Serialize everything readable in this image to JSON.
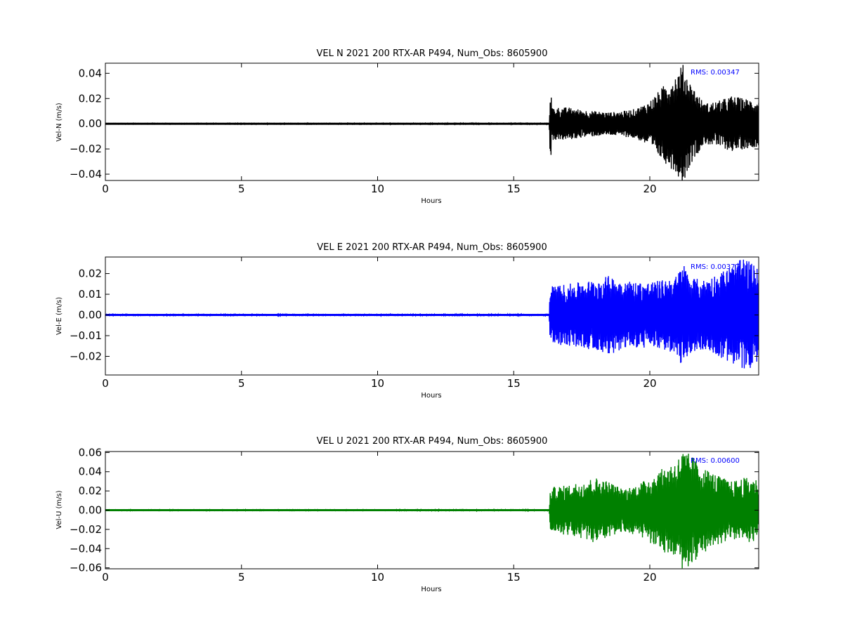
{
  "chart_data": [
    {
      "type": "line",
      "title": "VEL N 2021 200 RTX-AR  P494, Num_Obs: 8605900",
      "xlabel": "Hours",
      "ylabel": "Vel-N (m/s)",
      "xlim": [
        0,
        24
      ],
      "ylim": [
        -0.045,
        0.048
      ],
      "xticks": [
        0,
        5,
        10,
        15,
        20
      ],
      "yticks": [
        -0.04,
        -0.02,
        0.0,
        0.02,
        0.04
      ],
      "ytick_labels": [
        "−0.04",
        "−0.02",
        "0.00",
        "0.02",
        "0.04"
      ],
      "color": "#000000",
      "annotation": "RMS:  0.00347",
      "annotation_color": "#0000ff",
      "grid": false,
      "series": [
        {
          "x": [
            0,
            16.3,
            16.35,
            16.4,
            17,
            17.5,
            18,
            18.5,
            19,
            19.5,
            20,
            20.5,
            21,
            21.2,
            21.5,
            22,
            22.5,
            23,
            23.5,
            24
          ],
          "envelope": [
            0.0006,
            0.0008,
            0.037,
            0.013,
            0.013,
            0.011,
            0.01,
            0.009,
            0.01,
            0.012,
            0.018,
            0.03,
            0.04,
            0.048,
            0.032,
            0.016,
            0.018,
            0.022,
            0.02,
            0.018
          ]
        }
      ]
    },
    {
      "type": "line",
      "title": "VEL E 2021 200 RTX-AR  P494, Num_Obs: 8605900",
      "xlabel": "Hours",
      "ylabel": "Vel-E (m/s)",
      "xlim": [
        0,
        24
      ],
      "ylim": [
        -0.029,
        0.028
      ],
      "xticks": [
        0,
        5,
        10,
        15,
        20
      ],
      "yticks": [
        -0.02,
        -0.01,
        0.0,
        0.01,
        0.02
      ],
      "ytick_labels": [
        "−0.02",
        "−0.01",
        "0.00",
        "0.01",
        "0.02"
      ],
      "color": "#0000ff",
      "annotation": "RMS:  0.00377",
      "annotation_color": "#0000ff",
      "grid": false,
      "series": [
        {
          "x": [
            0,
            16.3,
            16.35,
            16.4,
            17,
            17.5,
            18,
            18.5,
            19,
            19.5,
            20,
            20.5,
            21,
            21.2,
            21.5,
            22,
            22.5,
            23,
            23.5,
            24
          ],
          "envelope": [
            0.0005,
            0.0006,
            0.016,
            0.014,
            0.015,
            0.016,
            0.017,
            0.019,
            0.017,
            0.016,
            0.016,
            0.017,
            0.019,
            0.026,
            0.018,
            0.017,
            0.02,
            0.024,
            0.028,
            0.022
          ]
        }
      ]
    },
    {
      "type": "line",
      "title": "VEL U 2021 200 RTX-AR  P494, Num_Obs: 8605900",
      "xlabel": "Hours",
      "ylabel": "Vel-U (m/s)",
      "xlim": [
        0,
        24
      ],
      "ylim": [
        -0.061,
        0.061
      ],
      "xticks": [
        0,
        5,
        10,
        15,
        20
      ],
      "yticks": [
        -0.06,
        -0.04,
        -0.02,
        0.0,
        0.02,
        0.04,
        0.06
      ],
      "ytick_labels": [
        "−0.06",
        "−0.04",
        "−0.02",
        "0.00",
        "0.02",
        "0.04",
        "0.06"
      ],
      "color": "#008000",
      "annotation": "RMS:  0.00600",
      "annotation_color": "#0000ff",
      "grid": false,
      "series": [
        {
          "x": [
            0,
            16.3,
            16.35,
            16.4,
            17,
            17.5,
            18,
            18.5,
            19,
            19.5,
            20,
            20.5,
            21,
            21.2,
            21.5,
            22,
            22.5,
            23,
            23.5,
            24
          ],
          "envelope": [
            0.0008,
            0.001,
            0.022,
            0.024,
            0.026,
            0.03,
            0.034,
            0.03,
            0.022,
            0.026,
            0.034,
            0.044,
            0.052,
            0.062,
            0.058,
            0.044,
            0.036,
            0.03,
            0.034,
            0.032
          ]
        }
      ]
    }
  ]
}
